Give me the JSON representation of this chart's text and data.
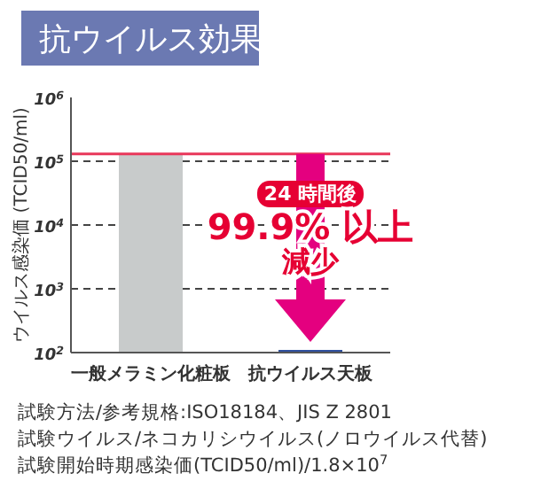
{
  "chart_data": {
    "type": "bar",
    "title": "抗ウイルス効果",
    "ylabel": "ウイルス感染価 (TCID50/ml)",
    "categories": [
      "一般メラミン化粧板",
      "抗ウイルス天板"
    ],
    "values": [
      130000,
      110
    ],
    "colors": [
      "#c8cbcb",
      "#2e4f9e"
    ],
    "log": true,
    "ylim": [
      100,
      1000000
    ],
    "yticks": [
      {
        "value": 100,
        "label": "10$^{2}$"
      },
      {
        "value": 1000,
        "label": "10$^{3}$"
      },
      {
        "value": 10000,
        "label": "10$^{4}$"
      },
      {
        "value": 100000,
        "label": "10$^{5}$"
      },
      {
        "value": 1000000,
        "label": "10$^{6}$"
      }
    ],
    "grid": "y",
    "ref_lines": [
      {
        "axis": "y",
        "value": 130000,
        "color": "#e8375a"
      }
    ],
    "annotations": [
      "24 時間後",
      "99.9% 以上",
      "減少",
      "試験方法/参考規格:ISO18184、JIS Z 2801",
      "試験ウイルス/ネコカリシウイルス(ノロウイルス代替)",
      "試験開始時期感染価(TCID50/ml)/1.8×10$^{7}$"
    ]
  }
}
